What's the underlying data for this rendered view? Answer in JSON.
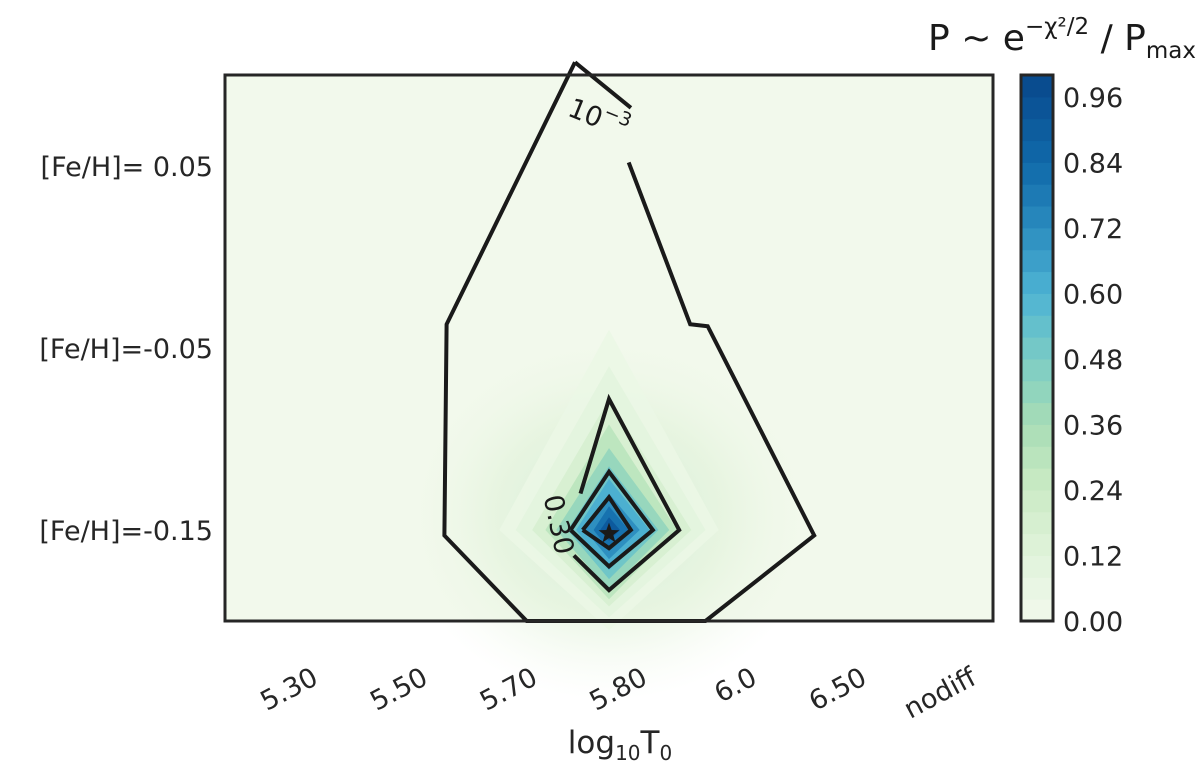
{
  "chart_data": {
    "type": "heatmap",
    "subtype": "filled contour with line contours",
    "xlabel_base": "log",
    "xlabel_base_sub": "10",
    "xlabel_var": "T",
    "xlabel_var_sub": "0",
    "x_ticks": [
      "5.30",
      "5.50",
      "5.70",
      "5.80",
      "6.0",
      "6.50",
      "nodiff"
    ],
    "y_ticks": [
      "[Fe/H]=-0.15",
      "[Fe/H]=-0.05",
      "[Fe/H]= 0.05"
    ],
    "x_range": [
      -0.5,
      6.5
    ],
    "y_range": [
      -0.5,
      2.5
    ],
    "probability_grid": [
      [
        0.0,
        0.0,
        0.03,
        1.0,
        0.06,
        0.0,
        0.0
      ],
      [
        0.0,
        0.0,
        0.02,
        0.12,
        0.03,
        0.0,
        0.0
      ],
      [
        0.0,
        0.0,
        0.001,
        0.002,
        0.001,
        0.0,
        0.0
      ]
    ],
    "best_fit": {
      "x": "5.80",
      "y": "[Fe/H]=-0.15"
    },
    "contour_levels": [
      0.001,
      0.3,
      0.6,
      0.9
    ],
    "contour_labels": [
      {
        "level": 0.001,
        "mantissa": "10",
        "exponent": "−3"
      },
      {
        "level": 0.3,
        "text": "0.30"
      }
    ],
    "colorbar": {
      "label_prefix": "P ~ e",
      "label_exponent": "−χ²/2",
      "label_mid": " / P",
      "label_sub": "max",
      "ticks": [
        "0.00",
        "0.12",
        "0.24",
        "0.36",
        "0.48",
        "0.60",
        "0.72",
        "0.84",
        "0.96"
      ],
      "tick_values": [
        0.0,
        0.12,
        0.24,
        0.36,
        0.48,
        0.6,
        0.72,
        0.84,
        0.96
      ],
      "range": [
        0.0,
        1.0
      ],
      "colormap": "GnBu",
      "color_low": "#f2f9ec",
      "color_high": "#08488b"
    },
    "grid": false,
    "legend": false
  }
}
